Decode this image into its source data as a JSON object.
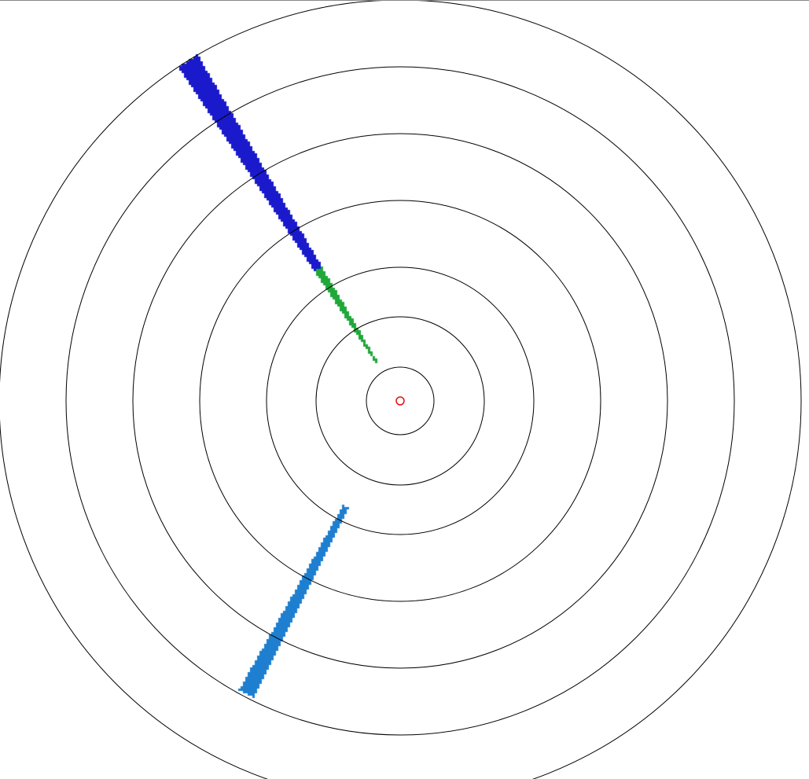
{
  "view": "radar-ppi",
  "colors": {
    "background": "#ffffff",
    "range_ring": "#000000",
    "scale": [
      "#1a1acc",
      "#1e7fd0",
      "#22c08a",
      "#1fa83a",
      "#3cc43c",
      "#a8d83a",
      "#f0e020",
      "#f5a020",
      "#f05a1e",
      "#e01010"
    ],
    "site_marker": "#ffffff"
  },
  "range_rings": 7
}
